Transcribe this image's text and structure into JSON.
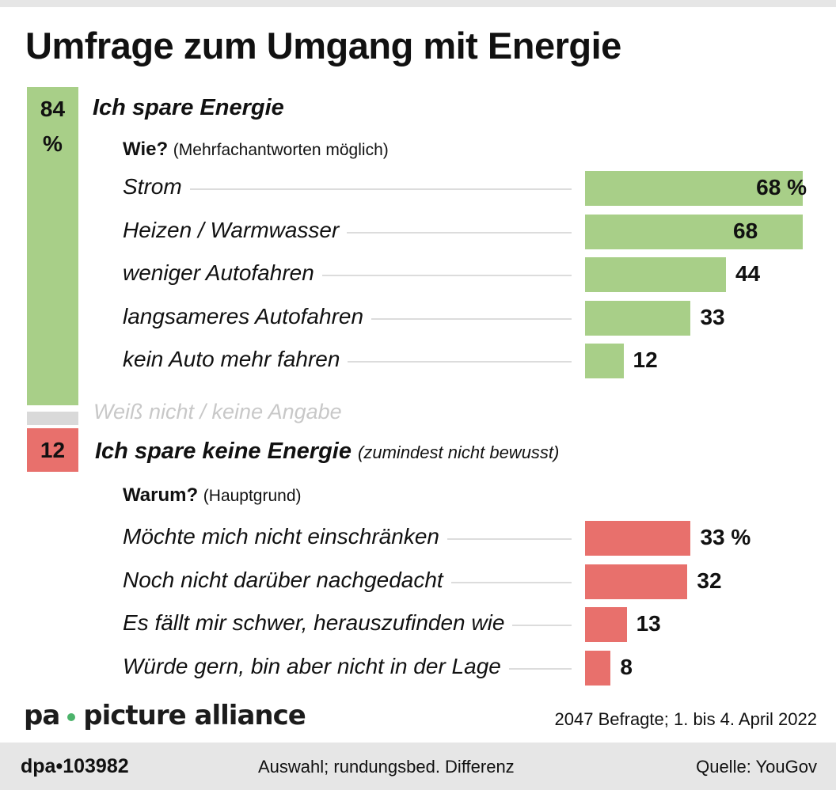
{
  "title": "Umfrage zum Umgang mit Energie",
  "colors": {
    "green": "#a8cf88",
    "red": "#e8706c",
    "grey": "#d9d9d9"
  },
  "chart_data": [
    {
      "type": "bar",
      "title": "Ich spare Energie",
      "share": 84,
      "share_label": [
        "84",
        "%"
      ],
      "question": "Wie?",
      "question_note": "(Mehrfachantworten möglich)",
      "categories": [
        "Strom",
        "Heizen / Warmwasser",
        "weniger Autofahren",
        "langsameres Autofahren",
        "kein Auto mehr fahren"
      ],
      "values": [
        68,
        68,
        44,
        33,
        12
      ],
      "value_labels": [
        "68 %",
        "68",
        "44",
        "33",
        "12"
      ],
      "unit": "%"
    },
    {
      "type": "bar",
      "title": "Weiß nicht / keine Angabe",
      "share": 4
    },
    {
      "type": "bar",
      "title": "Ich spare keine Energie",
      "title_note": "(zumindest nicht bewusst)",
      "share": 12,
      "share_label": "12",
      "question": "Warum?",
      "question_note": "(Hauptgrund)",
      "categories": [
        "Möchte mich nicht einschränken",
        "Noch nicht darüber nachgedacht",
        "Es fällt mir schwer, herauszufinden wie",
        "Würde gern, bin aber nicht in der Lage"
      ],
      "values": [
        33,
        32,
        13,
        8
      ],
      "value_labels": [
        "33 %",
        "32",
        "13",
        "8"
      ],
      "unit": "%"
    }
  ],
  "note": "2047 Befragte; 1. bis 4. April 2022",
  "footer": {
    "id": "dpa•103982",
    "remark": "Auswahl; rundungsbed. Differenz",
    "source": "Quelle: YouGov"
  },
  "watermark": {
    "left": "pa",
    "right": "picture alliance"
  }
}
